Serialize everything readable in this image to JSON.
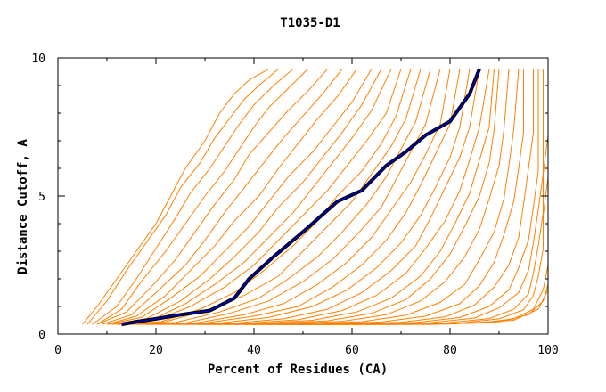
{
  "chart_data": {
    "type": "line",
    "title": "T1035-D1",
    "xlabel": "Percent of Residues (CA)",
    "ylabel": "Distance Cutoff, A",
    "xlim": [
      0,
      100
    ],
    "ylim": [
      0,
      10
    ],
    "x_ticks": [
      0,
      20,
      40,
      60,
      80,
      100
    ],
    "y_ticks": [
      0,
      5,
      10
    ],
    "grid": false,
    "colors": {
      "models": "#ff8000",
      "highlight_outer": "#000000",
      "highlight_inner": "#0000cc"
    },
    "series": [
      {
        "role": "highlight",
        "x": [
          13,
          16,
          20,
          25,
          31,
          36,
          39,
          44,
          50,
          57,
          62,
          67,
          71,
          75,
          80,
          84,
          86
        ],
        "y": [
          0.35,
          0.45,
          0.55,
          0.7,
          0.85,
          1.3,
          2.0,
          2.8,
          3.7,
          4.8,
          5.2,
          6.1,
          6.6,
          7.2,
          7.7,
          8.7,
          9.6
        ]
      },
      {
        "role": "model",
        "x": [
          5,
          8,
          12,
          16,
          20,
          23,
          26,
          30,
          33,
          36,
          39,
          43
        ],
        "y": [
          0.35,
          1.0,
          2.0,
          3.0,
          4.0,
          5.0,
          6.0,
          7.0,
          8.0,
          8.7,
          9.2,
          9.6
        ]
      },
      {
        "role": "model",
        "x": [
          6,
          10,
          14,
          18,
          22,
          25,
          29,
          32,
          35,
          38,
          41,
          45
        ],
        "y": [
          0.35,
          1.2,
          2.3,
          3.3,
          4.3,
          5.3,
          6.2,
          7.1,
          7.8,
          8.5,
          9.0,
          9.6
        ]
      },
      {
        "role": "model",
        "x": [
          7,
          12,
          16,
          20,
          24,
          27,
          31,
          34,
          37,
          40,
          44,
          48
        ],
        "y": [
          0.35,
          1.0,
          2.0,
          3.1,
          4.2,
          5.1,
          6.0,
          6.8,
          7.6,
          8.3,
          9.0,
          9.6
        ]
      },
      {
        "role": "model",
        "x": [
          8,
          13,
          17,
          22,
          26,
          30,
          34,
          37,
          40,
          43,
          47,
          51
        ],
        "y": [
          0.35,
          0.9,
          1.9,
          3.0,
          4.0,
          5.0,
          5.9,
          6.7,
          7.5,
          8.2,
          8.9,
          9.6
        ]
      },
      {
        "role": "model",
        "x": [
          8,
          14,
          19,
          24,
          28,
          32,
          36,
          39,
          43,
          47,
          51,
          55
        ],
        "y": [
          0.35,
          0.8,
          1.7,
          2.7,
          3.7,
          4.7,
          5.6,
          6.5,
          7.3,
          8.1,
          8.8,
          9.6
        ]
      },
      {
        "role": "model",
        "x": [
          9,
          15,
          20,
          26,
          30,
          34,
          38,
          42,
          46,
          50,
          54,
          58
        ],
        "y": [
          0.35,
          0.7,
          1.5,
          2.5,
          3.4,
          4.4,
          5.3,
          6.2,
          7.1,
          7.9,
          8.7,
          9.6
        ]
      },
      {
        "role": "model",
        "x": [
          10,
          16,
          22,
          27,
          32,
          36,
          41,
          45,
          49,
          53,
          57,
          61
        ],
        "y": [
          0.35,
          0.65,
          1.4,
          2.3,
          3.2,
          4.1,
          5.0,
          6.0,
          6.9,
          7.8,
          8.6,
          9.6
        ]
      },
      {
        "role": "model",
        "x": [
          10,
          17,
          23,
          29,
          34,
          39,
          43,
          47,
          52,
          56,
          60,
          64
        ],
        "y": [
          0.35,
          0.6,
          1.3,
          2.1,
          3.0,
          3.9,
          4.8,
          5.7,
          6.6,
          7.5,
          8.4,
          9.6
        ]
      },
      {
        "role": "model",
        "x": [
          11,
          18,
          25,
          31,
          36,
          41,
          45,
          50,
          54,
          58,
          62,
          66
        ],
        "y": [
          0.35,
          0.55,
          1.2,
          2.0,
          2.8,
          3.7,
          4.6,
          5.5,
          6.4,
          7.3,
          8.3,
          9.6
        ]
      },
      {
        "role": "model",
        "x": [
          11,
          19,
          26,
          32,
          38,
          43,
          48,
          52,
          56,
          60,
          64,
          68
        ],
        "y": [
          0.35,
          0.5,
          1.1,
          1.8,
          2.6,
          3.5,
          4.4,
          5.3,
          6.2,
          7.1,
          8.1,
          9.6
        ]
      },
      {
        "role": "model",
        "x": [
          12,
          20,
          27,
          34,
          40,
          45,
          50,
          55,
          59,
          63,
          67,
          70
        ],
        "y": [
          0.35,
          0.5,
          1.0,
          1.7,
          2.5,
          3.4,
          4.3,
          5.2,
          6.1,
          7.0,
          8.0,
          9.6
        ]
      },
      {
        "role": "model",
        "x": [
          12,
          21,
          29,
          36,
          42,
          48,
          53,
          57,
          62,
          66,
          69,
          72
        ],
        "y": [
          0.35,
          0.45,
          0.9,
          1.5,
          2.3,
          3.2,
          4.1,
          5.0,
          5.9,
          6.9,
          7.9,
          9.6
        ]
      },
      {
        "role": "model",
        "x": [
          13,
          22,
          30,
          38,
          45,
          50,
          55,
          60,
          64,
          68,
          71,
          74
        ],
        "y": [
          0.35,
          0.45,
          0.85,
          1.4,
          2.1,
          3.0,
          3.9,
          4.8,
          5.8,
          6.8,
          7.8,
          9.6
        ]
      },
      {
        "role": "model",
        "x": [
          14,
          24,
          33,
          41,
          47,
          53,
          58,
          63,
          67,
          70,
          73,
          76
        ],
        "y": [
          0.35,
          0.42,
          0.8,
          1.3,
          2.0,
          2.8,
          3.7,
          4.7,
          5.7,
          6.7,
          7.7,
          9.6
        ]
      },
      {
        "role": "model",
        "x": [
          15,
          26,
          35,
          43,
          50,
          56,
          61,
          66,
          69,
          72,
          75,
          78
        ],
        "y": [
          0.35,
          0.4,
          0.75,
          1.2,
          1.9,
          2.7,
          3.6,
          4.6,
          5.6,
          6.6,
          7.6,
          9.6
        ]
      },
      {
        "role": "model",
        "x": [
          16,
          28,
          38,
          46,
          53,
          59,
          64,
          68,
          72,
          75,
          78,
          80
        ],
        "y": [
          0.35,
          0.4,
          0.7,
          1.1,
          1.8,
          2.6,
          3.5,
          4.5,
          5.5,
          6.5,
          7.6,
          9.6
        ]
      },
      {
        "role": "model",
        "x": [
          17,
          30,
          40,
          49,
          56,
          62,
          67,
          71,
          74,
          77,
          80,
          82
        ],
        "y": [
          0.35,
          0.4,
          0.65,
          1.0,
          1.7,
          2.5,
          3.4,
          4.4,
          5.4,
          6.5,
          7.6,
          9.6
        ]
      },
      {
        "role": "model",
        "x": [
          18,
          32,
          43,
          52,
          59,
          65,
          70,
          74,
          77,
          80,
          82,
          84
        ],
        "y": [
          0.35,
          0.38,
          0.6,
          1.0,
          1.6,
          2.4,
          3.3,
          4.3,
          5.3,
          6.4,
          7.5,
          9.6
        ]
      },
      {
        "role": "model",
        "x": [
          19,
          35,
          46,
          55,
          62,
          68,
          73,
          76,
          79,
          82,
          84,
          86
        ],
        "y": [
          0.35,
          0.38,
          0.55,
          0.9,
          1.5,
          2.3,
          3.2,
          4.2,
          5.3,
          6.4,
          7.5,
          9.6
        ]
      },
      {
        "role": "model",
        "x": [
          20,
          37,
          49,
          58,
          65,
          71,
          75,
          79,
          82,
          84,
          86,
          88
        ],
        "y": [
          0.35,
          0.37,
          0.52,
          0.85,
          1.4,
          2.2,
          3.1,
          4.1,
          5.2,
          6.3,
          7.5,
          9.6
        ]
      },
      {
        "role": "model",
        "x": [
          21,
          40,
          52,
          61,
          68,
          74,
          78,
          81,
          84,
          86,
          88,
          89
        ],
        "y": [
          0.35,
          0.37,
          0.5,
          0.8,
          1.3,
          2.1,
          3.0,
          4.0,
          5.1,
          6.3,
          7.5,
          9.6
        ]
      },
      {
        "role": "model",
        "x": [
          22,
          42,
          55,
          64,
          71,
          76,
          80,
          83,
          86,
          88,
          89,
          90
        ],
        "y": [
          0.35,
          0.36,
          0.48,
          0.75,
          1.25,
          2.0,
          2.9,
          3.9,
          5.0,
          6.2,
          7.4,
          9.6
        ]
      },
      {
        "role": "model",
        "x": [
          24,
          45,
          58,
          67,
          74,
          79,
          83,
          86,
          88,
          90,
          91,
          92
        ],
        "y": [
          0.35,
          0.36,
          0.46,
          0.7,
          1.2,
          1.9,
          2.8,
          3.8,
          4.9,
          6.1,
          7.4,
          9.6
        ]
      },
      {
        "role": "model",
        "x": [
          26,
          48,
          62,
          71,
          78,
          83,
          86,
          89,
          91,
          92,
          93,
          94
        ],
        "y": [
          0.35,
          0.36,
          0.45,
          0.68,
          1.15,
          1.8,
          2.7,
          3.7,
          4.9,
          6.1,
          7.4,
          9.6
        ]
      },
      {
        "role": "model",
        "x": [
          28,
          52,
          66,
          75,
          82,
          86,
          89,
          91,
          93,
          94,
          95,
          95
        ],
        "y": [
          0.35,
          0.35,
          0.44,
          0.65,
          1.1,
          1.75,
          2.6,
          3.6,
          4.8,
          6.0,
          7.3,
          9.6
        ]
      },
      {
        "role": "model",
        "x": [
          30,
          55,
          70,
          79,
          85,
          89,
          92,
          94,
          95,
          96,
          97,
          97
        ],
        "y": [
          0.35,
          0.35,
          0.43,
          0.62,
          1.05,
          1.7,
          2.5,
          3.5,
          4.7,
          6.0,
          7.3,
          9.6
        ]
      },
      {
        "role": "model",
        "x": [
          32,
          58,
          73,
          82,
          88,
          92,
          94,
          96,
          97,
          98,
          98,
          98
        ],
        "y": [
          0.35,
          0.35,
          0.42,
          0.6,
          1.0,
          1.6,
          2.4,
          3.4,
          4.6,
          5.9,
          7.3,
          9.6
        ]
      },
      {
        "role": "model",
        "x": [
          35,
          62,
          76,
          85,
          90,
          94,
          96,
          97,
          98,
          99,
          99,
          99
        ],
        "y": [
          0.35,
          0.35,
          0.41,
          0.58,
          0.95,
          1.5,
          2.3,
          3.3,
          4.5,
          5.8,
          7.2,
          9.6
        ]
      },
      {
        "role": "model",
        "x": [
          38,
          65,
          79,
          88,
          93,
          96,
          97,
          98,
          99,
          99,
          100,
          100
        ],
        "y": [
          0.35,
          0.35,
          0.4,
          0.56,
          0.9,
          1.45,
          2.2,
          3.2,
          4.4,
          5.8,
          7.2,
          9.6
        ]
      },
      {
        "role": "model",
        "x": [
          40,
          68,
          82,
          90,
          95,
          97,
          98,
          99,
          99,
          100,
          100,
          100
        ],
        "y": [
          0.35,
          0.35,
          0.4,
          0.55,
          0.88,
          1.4,
          2.1,
          3.1,
          4.3,
          5.7,
          7.1,
          9.6
        ]
      },
      {
        "role": "model",
        "x": [
          45,
          72,
          86,
          93,
          97,
          99,
          100,
          100,
          100,
          100,
          100,
          100
        ],
        "y": [
          0.35,
          0.35,
          0.4,
          0.55,
          0.9,
          1.6,
          2.5,
          3.5,
          4.6,
          5.9,
          7.3,
          9.6
        ]
      },
      {
        "role": "model",
        "x": [
          50,
          76,
          90,
          96,
          99,
          100,
          100,
          100,
          100,
          100,
          100,
          100
        ],
        "y": [
          0.35,
          0.35,
          0.45,
          0.7,
          1.2,
          1.8,
          2.8,
          3.8,
          5.0,
          6.2,
          7.5,
          9.6
        ]
      },
      {
        "role": "model",
        "x": [
          55,
          80,
          93,
          98,
          100,
          100,
          100,
          100,
          100,
          100,
          100,
          100
        ],
        "y": [
          0.35,
          0.36,
          0.5,
          0.9,
          1.6,
          2.4,
          3.4,
          4.5,
          5.7,
          6.9,
          8.0,
          9.6
        ]
      }
    ]
  }
}
